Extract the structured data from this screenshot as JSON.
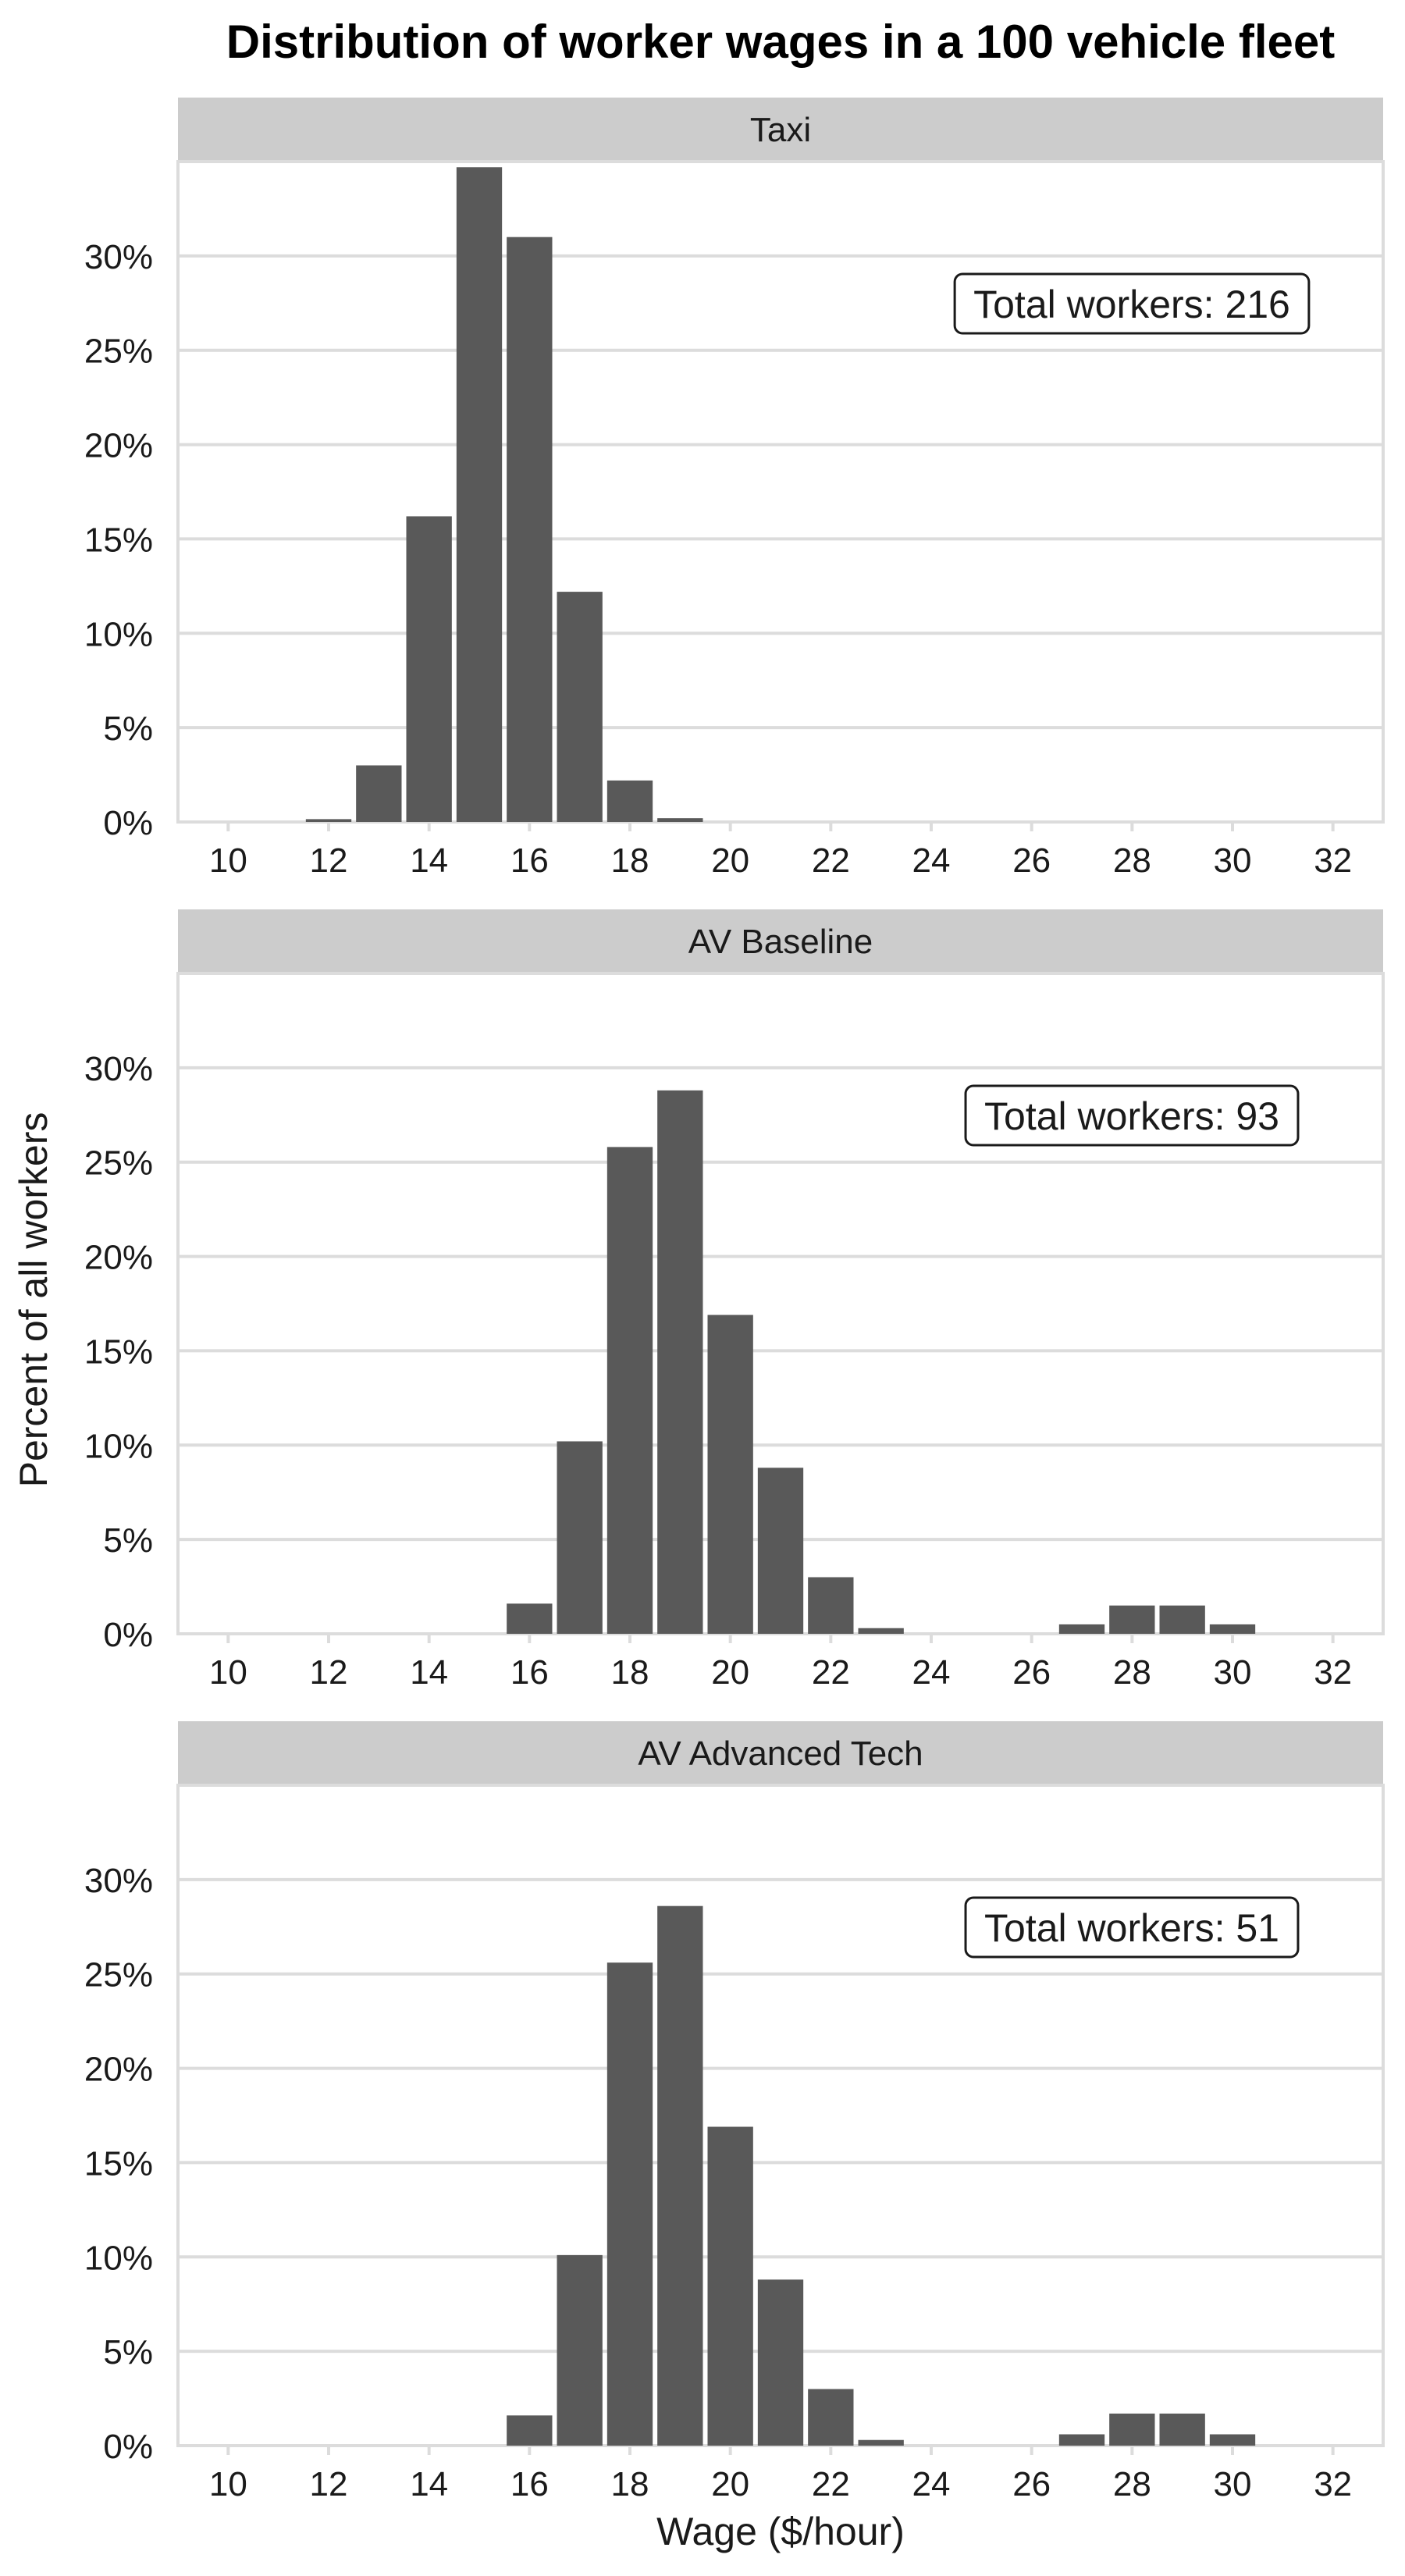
{
  "chart_data": {
    "type": "bar",
    "title": "Distribution of worker wages in a 100 vehicle fleet",
    "xlabel": "Wage ($/hour)",
    "ylabel": "Percent of all workers",
    "x_ticks": [
      10,
      12,
      14,
      16,
      18,
      20,
      22,
      24,
      26,
      28,
      30,
      32
    ],
    "y_ticks": [
      "0%",
      "5%",
      "10%",
      "15%",
      "20%",
      "25%",
      "30%"
    ],
    "xlim": [
      9,
      33
    ],
    "ylim": [
      0,
      0.35
    ],
    "grid": true,
    "bar_color": "#595959",
    "gridline_color": "#dcdcdc",
    "strip_color": "#cccccc",
    "panels": [
      {
        "label": "Taxi",
        "annotation": "Total workers: 216",
        "bins": [
          12,
          13,
          14,
          15,
          16,
          17,
          18,
          19
        ],
        "values": [
          0.0015,
          0.03,
          0.162,
          0.347,
          0.31,
          0.122,
          0.022,
          0.002
        ]
      },
      {
        "label": "AV Baseline",
        "annotation": "Total workers: 93",
        "bins": [
          16,
          17,
          18,
          19,
          20,
          21,
          22,
          23,
          27,
          28,
          29,
          30
        ],
        "values": [
          0.016,
          0.102,
          0.258,
          0.288,
          0.169,
          0.088,
          0.03,
          0.003,
          0.005,
          0.015,
          0.015,
          0.005
        ]
      },
      {
        "label": "AV Advanced Tech",
        "annotation": "Total workers: 51",
        "bins": [
          16,
          17,
          18,
          19,
          20,
          21,
          22,
          23,
          27,
          28,
          29,
          30
        ],
        "values": [
          0.016,
          0.101,
          0.256,
          0.286,
          0.169,
          0.088,
          0.03,
          0.003,
          0.006,
          0.017,
          0.017,
          0.006
        ]
      }
    ]
  }
}
